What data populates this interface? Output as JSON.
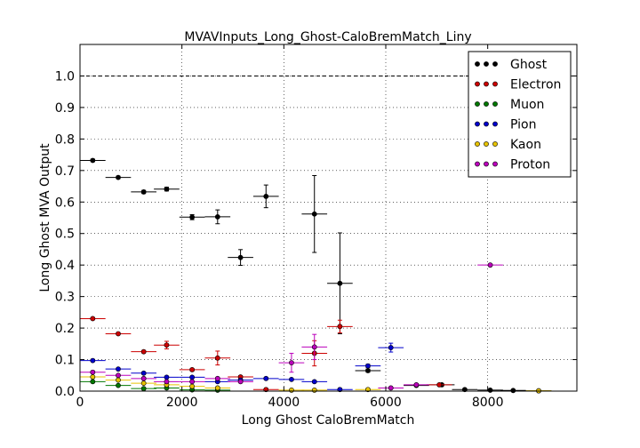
{
  "chart_data": {
    "type": "scatter",
    "title": "MVAVInputs_Long_Ghost-CaloBremMatch_Liny",
    "xlabel": "Long Ghost CaloBremMatch",
    "ylabel": "Long Ghost MVA Output",
    "xlim": [
      0,
      9750
    ],
    "ylim": [
      0,
      1.1
    ],
    "x_ticks": [
      "0",
      "2000",
      "4000",
      "6000",
      "8000"
    ],
    "y_ticks": [
      "0.0",
      "0.1",
      "0.2",
      "0.3",
      "0.4",
      "0.5",
      "0.6",
      "0.7",
      "0.8",
      "0.9",
      "1.0"
    ],
    "grid": true,
    "reference_line_y": 1.0,
    "legend_position": "top-right",
    "series": [
      {
        "name": "Ghost",
        "color": "#000000",
        "points": [
          {
            "x": 250,
            "y": 0.732,
            "xerr": 250,
            "yerr": 0.004
          },
          {
            "x": 750,
            "y": 0.678,
            "xerr": 250,
            "yerr": 0.004
          },
          {
            "x": 1250,
            "y": 0.632,
            "xerr": 250,
            "yerr": 0.005
          },
          {
            "x": 1700,
            "y": 0.641,
            "xerr": 250,
            "yerr": 0.006
          },
          {
            "x": 2200,
            "y": 0.552,
            "xerr": 250,
            "yerr": 0.008
          },
          {
            "x": 2700,
            "y": 0.553,
            "xerr": 250,
            "yerr": 0.022
          },
          {
            "x": 3150,
            "y": 0.424,
            "xerr": 250,
            "yerr": 0.025
          },
          {
            "x": 3650,
            "y": 0.618,
            "xerr": 250,
            "yerr": 0.036
          },
          {
            "x": 4600,
            "y": 0.562,
            "xerr": 250,
            "yerr": 0.122
          },
          {
            "x": 5100,
            "y": 0.342,
            "xerr": 250,
            "yerr": 0.16
          },
          {
            "x": 5650,
            "y": 0.065,
            "xerr": 250,
            "yerr": 0.005
          },
          {
            "x": 6600,
            "y": 0.018,
            "xerr": 250,
            "yerr": 0.003
          },
          {
            "x": 7100,
            "y": 0.02,
            "xerr": 250,
            "yerr": 0.003
          },
          {
            "x": 7550,
            "y": 0.005,
            "xerr": 250,
            "yerr": 0.002
          },
          {
            "x": 8050,
            "y": 0.003,
            "xerr": 250,
            "yerr": 0.002
          },
          {
            "x": 8500,
            "y": 0.002,
            "xerr": 250,
            "yerr": 0.001
          },
          {
            "x": 9000,
            "y": 0.001,
            "xerr": 250,
            "yerr": 0.001
          }
        ]
      },
      {
        "name": "Electron",
        "color": "#cc0000",
        "points": [
          {
            "x": 250,
            "y": 0.23,
            "xerr": 250,
            "yerr": 0.003
          },
          {
            "x": 750,
            "y": 0.182,
            "xerr": 250,
            "yerr": 0.003
          },
          {
            "x": 1250,
            "y": 0.125,
            "xerr": 250,
            "yerr": 0.004
          },
          {
            "x": 1700,
            "y": 0.146,
            "xerr": 250,
            "yerr": 0.012
          },
          {
            "x": 2200,
            "y": 0.068,
            "xerr": 250,
            "yerr": 0.004
          },
          {
            "x": 2700,
            "y": 0.105,
            "xerr": 250,
            "yerr": 0.022
          },
          {
            "x": 3150,
            "y": 0.045,
            "xerr": 250,
            "yerr": 0.004
          },
          {
            "x": 3650,
            "y": 0.005,
            "xerr": 250,
            "yerr": 0.002
          },
          {
            "x": 4600,
            "y": 0.12,
            "xerr": 250,
            "yerr": 0.04
          },
          {
            "x": 5100,
            "y": 0.205,
            "xerr": 250,
            "yerr": 0.02
          },
          {
            "x": 7050,
            "y": 0.02,
            "xerr": 250,
            "yerr": 0.003
          }
        ]
      },
      {
        "name": "Muon",
        "color": "#007700",
        "points": [
          {
            "x": 250,
            "y": 0.03,
            "xerr": 250,
            "yerr": 0.002
          },
          {
            "x": 750,
            "y": 0.018,
            "xerr": 250,
            "yerr": 0.002
          },
          {
            "x": 1250,
            "y": 0.008,
            "xerr": 250,
            "yerr": 0.002
          },
          {
            "x": 1700,
            "y": 0.01,
            "xerr": 250,
            "yerr": 0.002
          },
          {
            "x": 2200,
            "y": 0.004,
            "xerr": 250,
            "yerr": 0.002
          },
          {
            "x": 2700,
            "y": 0.003,
            "xerr": 250,
            "yerr": 0.002
          }
        ]
      },
      {
        "name": "Pion",
        "color": "#0000cc",
        "points": [
          {
            "x": 250,
            "y": 0.097,
            "xerr": 250,
            "yerr": 0.003
          },
          {
            "x": 750,
            "y": 0.07,
            "xerr": 250,
            "yerr": 0.003
          },
          {
            "x": 1250,
            "y": 0.057,
            "xerr": 250,
            "yerr": 0.003
          },
          {
            "x": 1700,
            "y": 0.044,
            "xerr": 250,
            "yerr": 0.003
          },
          {
            "x": 2200,
            "y": 0.044,
            "xerr": 250,
            "yerr": 0.003
          },
          {
            "x": 2700,
            "y": 0.03,
            "xerr": 250,
            "yerr": 0.003
          },
          {
            "x": 3150,
            "y": 0.035,
            "xerr": 250,
            "yerr": 0.003
          },
          {
            "x": 3650,
            "y": 0.04,
            "xerr": 250,
            "yerr": 0.003
          },
          {
            "x": 4150,
            "y": 0.037,
            "xerr": 250,
            "yerr": 0.003
          },
          {
            "x": 4600,
            "y": 0.03,
            "xerr": 250,
            "yerr": 0.003
          },
          {
            "x": 5100,
            "y": 0.005,
            "xerr": 250,
            "yerr": 0.002
          },
          {
            "x": 5650,
            "y": 0.08,
            "xerr": 250,
            "yerr": 0.005
          },
          {
            "x": 6100,
            "y": 0.138,
            "xerr": 250,
            "yerr": 0.014
          }
        ]
      },
      {
        "name": "Kaon",
        "color": "#e6c200",
        "points": [
          {
            "x": 250,
            "y": 0.045,
            "xerr": 250,
            "yerr": 0.002
          },
          {
            "x": 750,
            "y": 0.035,
            "xerr": 250,
            "yerr": 0.002
          },
          {
            "x": 1250,
            "y": 0.025,
            "xerr": 250,
            "yerr": 0.002
          },
          {
            "x": 1700,
            "y": 0.02,
            "xerr": 250,
            "yerr": 0.002
          },
          {
            "x": 2200,
            "y": 0.015,
            "xerr": 250,
            "yerr": 0.002
          },
          {
            "x": 2700,
            "y": 0.01,
            "xerr": 250,
            "yerr": 0.002
          },
          {
            "x": 4150,
            "y": 0.003,
            "xerr": 250,
            "yerr": 0.002
          },
          {
            "x": 4600,
            "y": 0.003,
            "xerr": 250,
            "yerr": 0.002
          },
          {
            "x": 5650,
            "y": 0.005,
            "xerr": 250,
            "yerr": 0.002
          },
          {
            "x": 9000,
            "y": 0.001,
            "xerr": 250,
            "yerr": 0.001
          }
        ]
      },
      {
        "name": "Proton",
        "color": "#bb00bb",
        "points": [
          {
            "x": 250,
            "y": 0.06,
            "xerr": 250,
            "yerr": 0.002
          },
          {
            "x": 750,
            "y": 0.05,
            "xerr": 250,
            "yerr": 0.002
          },
          {
            "x": 1250,
            "y": 0.04,
            "xerr": 250,
            "yerr": 0.002
          },
          {
            "x": 1700,
            "y": 0.03,
            "xerr": 250,
            "yerr": 0.002
          },
          {
            "x": 2200,
            "y": 0.03,
            "xerr": 250,
            "yerr": 0.002
          },
          {
            "x": 2700,
            "y": 0.04,
            "xerr": 250,
            "yerr": 0.002
          },
          {
            "x": 3150,
            "y": 0.03,
            "xerr": 250,
            "yerr": 0.002
          },
          {
            "x": 4150,
            "y": 0.09,
            "xerr": 250,
            "yerr": 0.03
          },
          {
            "x": 4600,
            "y": 0.14,
            "xerr": 250,
            "yerr": 0.04
          },
          {
            "x": 6100,
            "y": 0.01,
            "xerr": 250,
            "yerr": 0.003
          },
          {
            "x": 6600,
            "y": 0.02,
            "xerr": 250,
            "yerr": 0.004
          },
          {
            "x": 8050,
            "y": 0.4,
            "xerr": 250,
            "yerr": 0.003
          }
        ]
      }
    ]
  }
}
